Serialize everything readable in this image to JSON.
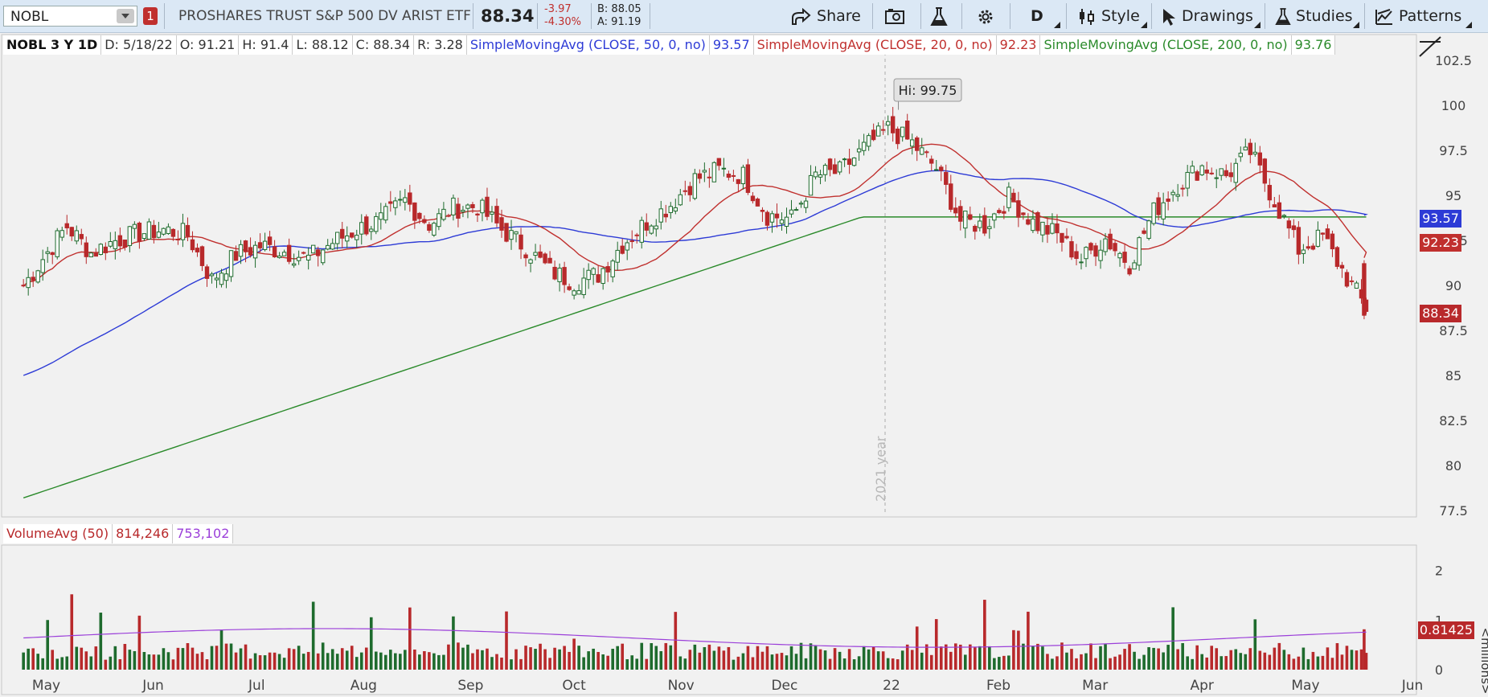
{
  "toolbar": {
    "symbol": "NOBL",
    "alert_count": "1",
    "name": "PROSHARES TRUST S&P 500 DV ARIST ETF",
    "last": "88.34",
    "change": "-3.97",
    "change_pct": "-4.30%",
    "bid": "B: 88.05",
    "ask": "A: 91.19",
    "share_label": "Share",
    "period_label": "D",
    "style_label": "Style",
    "drawings_label": "Drawings",
    "studies_label": "Studies",
    "patterns_label": "Patterns"
  },
  "legend": {
    "title": "NOBL 3 Y 1D",
    "date": "D: 5/18/22",
    "open": "O: 91.21",
    "high": "H: 91.4",
    "low": "L: 88.12",
    "close": "C: 88.34",
    "range": "R: 3.28",
    "sma50_label": "SimpleMovingAvg (CLOSE, 50, 0, no)",
    "sma50_value": "93.57",
    "sma20_label": "SimpleMovingAvg (CLOSE, 20, 0, no)",
    "sma20_value": "92.23",
    "sma200_label": "SimpleMovingAvg (CLOSE, 200, 0, no)",
    "sma200_value": "93.76"
  },
  "volume_legend": {
    "label": "VolumeAvg (50)",
    "volume": "814,246",
    "avg": "753,102"
  },
  "annotations": {
    "hi_label": "Hi: 99.75",
    "year_label": "2021 year"
  },
  "price_tags": {
    "sma50": "93.57",
    "sma20": "92.23",
    "last": "88.34",
    "volume": "0.81425"
  },
  "colors": {
    "up": "#1e6b2d",
    "down": "#b8292b",
    "sma50": "#2d3bd6",
    "sma20": "#c0302e",
    "sma200": "#2a8a2a",
    "volavg": "#9b3fd9"
  },
  "chart_data": [
    {
      "type": "candlestick",
      "title": "NOBL 3 Y 1D",
      "x_ticks": [
        "May",
        "Jun",
        "Jul",
        "Aug",
        "Sep",
        "Oct",
        "Nov",
        "Dec",
        "22",
        "Feb",
        "Mar",
        "Apr",
        "May",
        "Jun"
      ],
      "y_ticks": [
        "102.5",
        "100",
        "97.5",
        "95",
        "92.5",
        "90",
        "87.5",
        "85",
        "82.5",
        "80",
        "77.5"
      ],
      "ylim": [
        77.5,
        102.5
      ],
      "x_range": [
        "2021-04-19",
        "2022-06-01"
      ],
      "weekly_close": [
        [
          "2021-04-23",
          89.6
        ],
        [
          "2021-04-30",
          91.5
        ],
        [
          "2021-05-07",
          93.3
        ],
        [
          "2021-05-14",
          91.8
        ],
        [
          "2021-05-21",
          92.5
        ],
        [
          "2021-05-28",
          92.9
        ],
        [
          "2021-06-04",
          93.1
        ],
        [
          "2021-06-11",
          92.8
        ],
        [
          "2021-06-18",
          90.3
        ],
        [
          "2021-06-25",
          91.7
        ],
        [
          "2021-07-02",
          92.2
        ],
        [
          "2021-07-09",
          91.9
        ],
        [
          "2021-07-16",
          91.5
        ],
        [
          "2021-07-23",
          92.4
        ],
        [
          "2021-07-30",
          93.1
        ],
        [
          "2021-08-06",
          93.6
        ],
        [
          "2021-08-13",
          94.7
        ],
        [
          "2021-08-20",
          93.4
        ],
        [
          "2021-08-27",
          94.3
        ],
        [
          "2021-09-03",
          94.4
        ],
        [
          "2021-09-10",
          93.1
        ],
        [
          "2021-09-17",
          92.1
        ],
        [
          "2021-09-24",
          90.8
        ],
        [
          "2021-10-01",
          90.2
        ],
        [
          "2021-10-08",
          90.6
        ],
        [
          "2021-10-15",
          92.3
        ],
        [
          "2021-10-22",
          93.5
        ],
        [
          "2021-10-29",
          94.5
        ],
        [
          "2021-11-05",
          95.9
        ],
        [
          "2021-11-12",
          96.4
        ],
        [
          "2021-11-19",
          96.1
        ],
        [
          "2021-11-26",
          93.9
        ],
        [
          "2021-12-03",
          93.7
        ],
        [
          "2021-12-10",
          96.1
        ],
        [
          "2021-12-17",
          96.3
        ],
        [
          "2021-12-24",
          97.6
        ],
        [
          "2021-12-31",
          98.7
        ],
        [
          "2022-01-07",
          97.9
        ],
        [
          "2022-01-14",
          96.5
        ],
        [
          "2022-01-21",
          93.6
        ],
        [
          "2022-01-28",
          93.3
        ],
        [
          "2022-02-04",
          94.9
        ],
        [
          "2022-02-11",
          93.5
        ],
        [
          "2022-02-18",
          92.8
        ],
        [
          "2022-02-25",
          91.4
        ],
        [
          "2022-03-04",
          92.6
        ],
        [
          "2022-03-11",
          91.2
        ],
        [
          "2022-03-18",
          94.1
        ],
        [
          "2022-03-25",
          95.6
        ],
        [
          "2022-04-01",
          96.6
        ],
        [
          "2022-04-08",
          96.1
        ],
        [
          "2022-04-15",
          97.4
        ],
        [
          "2022-04-22",
          94.7
        ],
        [
          "2022-04-29",
          92.0
        ],
        [
          "2022-05-06",
          92.7
        ],
        [
          "2022-05-13",
          90.4
        ],
        [
          "2022-05-18",
          88.34
        ]
      ],
      "ohlc_last": {
        "date": "2022-05-18",
        "open": 91.21,
        "high": 91.4,
        "low": 88.12,
        "close": 88.34
      },
      "series": [
        {
          "name": "SimpleMovingAvg (CLOSE, 50, 0, no)",
          "last": 93.57
        },
        {
          "name": "SimpleMovingAvg (CLOSE, 20, 0, no)",
          "last": 92.23
        },
        {
          "name": "SimpleMovingAvg (CLOSE, 200, 0, no)",
          "last": 93.76
        }
      ],
      "high_marker": {
        "date": "2022-01-03",
        "value": 99.75
      },
      "grid": false
    },
    {
      "type": "bar",
      "title": "VolumeAvg (50)",
      "y_ticks": [
        "2",
        "1",
        "0"
      ],
      "ylabel": "<millions>",
      "ylim": [
        0,
        2.4
      ],
      "last_volume": 814246,
      "avg_volume": 753102
    }
  ]
}
